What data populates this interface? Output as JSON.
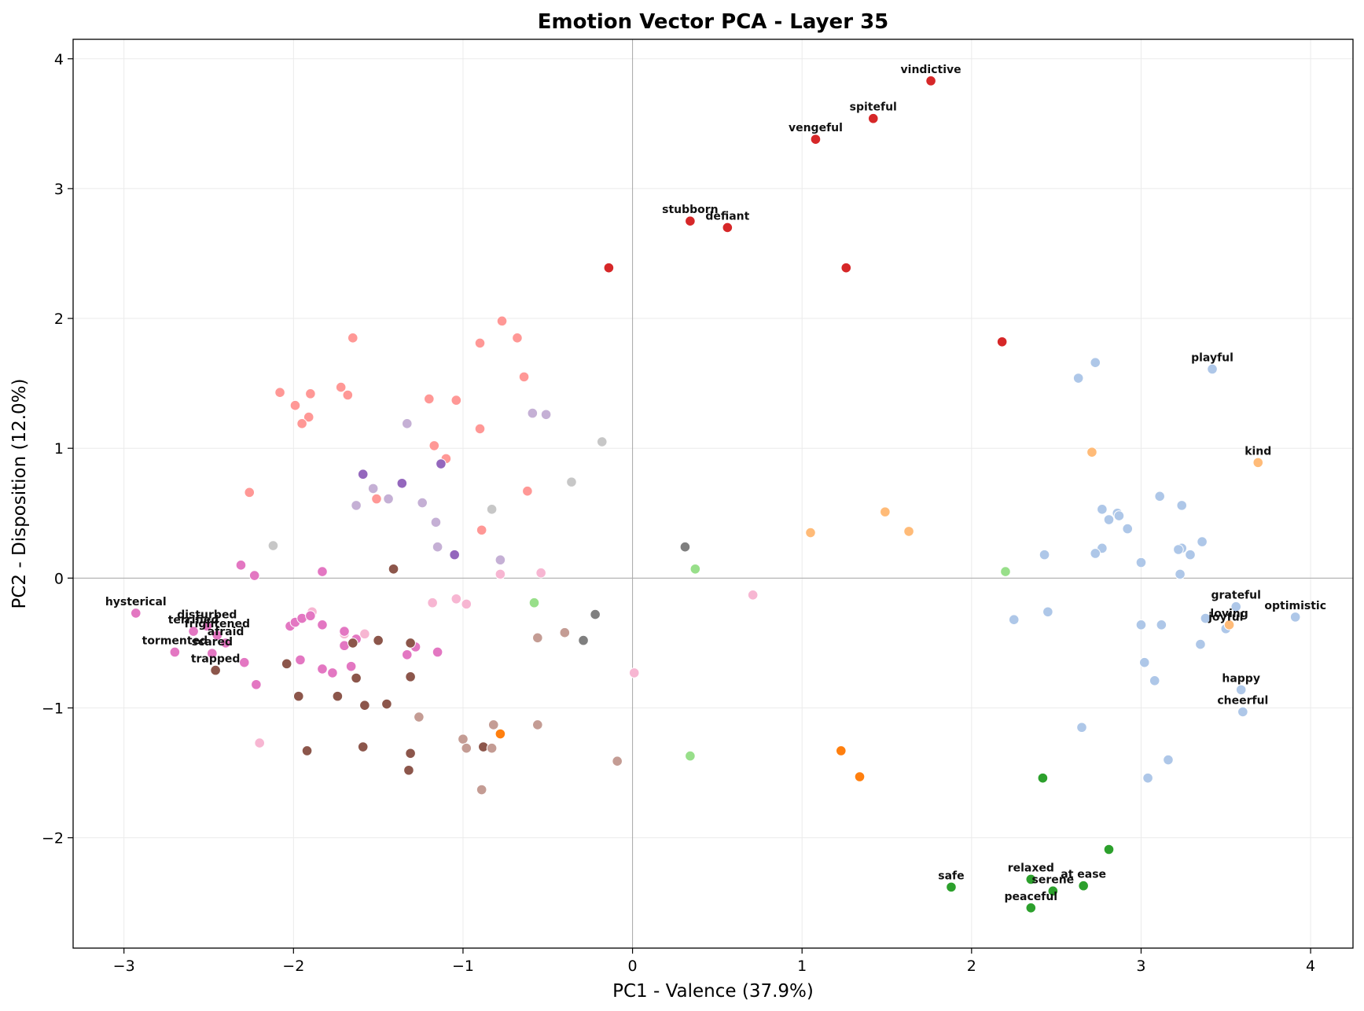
{
  "chart_data": {
    "type": "scatter",
    "title": "Emotion Vector PCA - Layer 35",
    "xlabel": "PC1 - Valence (37.9%)",
    "ylabel": "PC2 - Disposition (12.0%)",
    "xlim": [
      -3.3,
      4.25
    ],
    "ylim": [
      -2.85,
      4.15
    ],
    "xticks": [
      -3,
      -2,
      -1,
      0,
      1,
      2,
      3,
      4
    ],
    "yticks": [
      -2,
      -1,
      0,
      1,
      2,
      3,
      4
    ],
    "xtick_labels": [
      "−3",
      "−2",
      "−1",
      "0",
      "1",
      "2",
      "3",
      "4"
    ],
    "ytick_labels": [
      "−2",
      "−1",
      "0",
      "1",
      "2",
      "3",
      "4"
    ],
    "grid": true,
    "zero_lines": true,
    "legend": "none",
    "series": [
      {
        "color": "#d62728",
        "points": [
          [
            1.76,
            3.83
          ],
          [
            1.42,
            3.54
          ],
          [
            1.08,
            3.38
          ],
          [
            0.34,
            2.75
          ],
          [
            0.56,
            2.7
          ],
          [
            -0.14,
            2.39
          ],
          [
            1.26,
            2.39
          ],
          [
            2.18,
            1.82
          ]
        ]
      },
      {
        "color": "#ff9896",
        "points": [
          [
            -0.77,
            1.98
          ],
          [
            -0.68,
            1.85
          ],
          [
            -1.65,
            1.85
          ],
          [
            -0.9,
            1.81
          ],
          [
            -0.64,
            1.55
          ],
          [
            -2.08,
            1.43
          ],
          [
            -1.72,
            1.47
          ],
          [
            -1.9,
            1.42
          ],
          [
            -1.68,
            1.41
          ],
          [
            -1.2,
            1.38
          ],
          [
            -1.04,
            1.37
          ],
          [
            -1.99,
            1.33
          ],
          [
            -1.91,
            1.24
          ],
          [
            -1.95,
            1.19
          ],
          [
            -0.9,
            1.15
          ],
          [
            -1.17,
            1.02
          ],
          [
            -1.1,
            0.92
          ],
          [
            -2.26,
            0.66
          ],
          [
            -0.62,
            0.67
          ],
          [
            -1.51,
            0.61
          ],
          [
            -0.89,
            0.37
          ]
        ]
      },
      {
        "color": "#aec7e8",
        "points": [
          [
            3.42,
            1.61
          ],
          [
            2.73,
            1.66
          ],
          [
            2.63,
            1.54
          ],
          [
            3.11,
            0.63
          ],
          [
            3.24,
            0.56
          ],
          [
            2.77,
            0.53
          ],
          [
            2.86,
            0.5
          ],
          [
            2.87,
            0.48
          ],
          [
            2.81,
            0.45
          ],
          [
            2.92,
            0.38
          ],
          [
            3.36,
            0.28
          ],
          [
            2.77,
            0.23
          ],
          [
            3.24,
            0.23
          ],
          [
            3.22,
            0.22
          ],
          [
            3.29,
            0.18
          ],
          [
            2.73,
            0.19
          ],
          [
            2.43,
            0.18
          ],
          [
            3.0,
            0.12
          ],
          [
            3.23,
            0.03
          ],
          [
            3.56,
            -0.22
          ],
          [
            3.91,
            -0.3
          ],
          [
            3.38,
            -0.31
          ],
          [
            2.25,
            -0.32
          ],
          [
            2.45,
            -0.26
          ],
          [
            3.0,
            -0.36
          ],
          [
            3.12,
            -0.36
          ],
          [
            3.5,
            -0.39
          ],
          [
            3.35,
            -0.51
          ],
          [
            3.02,
            -0.65
          ],
          [
            3.08,
            -0.79
          ],
          [
            3.59,
            -0.86
          ],
          [
            3.6,
            -1.03
          ],
          [
            2.65,
            -1.15
          ],
          [
            3.16,
            -1.4
          ],
          [
            3.04,
            -1.54
          ]
        ]
      },
      {
        "color": "#ffbb78",
        "points": [
          [
            3.69,
            0.89
          ],
          [
            2.71,
            0.97
          ],
          [
            1.49,
            0.51
          ],
          [
            1.63,
            0.36
          ],
          [
            1.05,
            0.35
          ],
          [
            3.52,
            -0.36
          ]
        ]
      },
      {
        "color": "#c5b0d5",
        "points": [
          [
            -1.33,
            1.19
          ],
          [
            -0.59,
            1.27
          ],
          [
            -0.51,
            1.26
          ],
          [
            -1.53,
            0.69
          ],
          [
            -1.44,
            0.61
          ],
          [
            -1.63,
            0.56
          ],
          [
            -1.24,
            0.58
          ],
          [
            -1.16,
            0.43
          ],
          [
            -1.15,
            0.24
          ],
          [
            -0.78,
            0.14
          ]
        ]
      },
      {
        "color": "#9467bd",
        "points": [
          [
            -1.59,
            0.8
          ],
          [
            -1.36,
            0.73
          ],
          [
            -1.13,
            0.88
          ],
          [
            -1.05,
            0.18
          ]
        ]
      },
      {
        "color": "#c7c7c7",
        "points": [
          [
            -0.18,
            1.05
          ],
          [
            -0.36,
            0.74
          ],
          [
            -0.83,
            0.53
          ],
          [
            -2.12,
            0.25
          ]
        ]
      },
      {
        "color": "#7f7f7f",
        "points": [
          [
            0.31,
            0.24
          ],
          [
            -0.22,
            -0.28
          ],
          [
            -0.29,
            -0.48
          ]
        ]
      },
      {
        "color": "#98df8a",
        "points": [
          [
            0.37,
            0.07
          ],
          [
            2.2,
            0.05
          ],
          [
            -0.58,
            -0.19
          ],
          [
            0.34,
            -1.37
          ]
        ]
      },
      {
        "color": "#f7b6d2",
        "points": [
          [
            -0.78,
            0.03
          ],
          [
            -0.54,
            0.04
          ],
          [
            -1.89,
            -0.26
          ],
          [
            -1.18,
            -0.19
          ],
          [
            -1.04,
            -0.16
          ],
          [
            -0.98,
            -0.2
          ],
          [
            0.71,
            -0.13
          ],
          [
            -1.7,
            -0.43
          ],
          [
            -1.58,
            -0.43
          ],
          [
            0.01,
            -0.73
          ],
          [
            -2.2,
            -1.27
          ]
        ]
      },
      {
        "color": "#e377c2",
        "points": [
          [
            -2.31,
            0.1
          ],
          [
            -2.23,
            0.02
          ],
          [
            -1.83,
            0.05
          ],
          [
            -2.93,
            -0.27
          ],
          [
            -2.59,
            -0.41
          ],
          [
            -2.51,
            -0.37
          ],
          [
            -2.45,
            -0.44
          ],
          [
            -2.4,
            -0.5
          ],
          [
            -2.02,
            -0.37
          ],
          [
            -1.99,
            -0.34
          ],
          [
            -1.95,
            -0.31
          ],
          [
            -1.9,
            -0.29
          ],
          [
            -1.83,
            -0.36
          ],
          [
            -1.7,
            -0.41
          ],
          [
            -1.63,
            -0.47
          ],
          [
            -1.7,
            -0.52
          ],
          [
            -2.7,
            -0.57
          ],
          [
            -2.48,
            -0.58
          ],
          [
            -2.29,
            -0.65
          ],
          [
            -1.96,
            -0.63
          ],
          [
            -1.83,
            -0.7
          ],
          [
            -1.77,
            -0.73
          ],
          [
            -1.66,
            -0.68
          ],
          [
            -1.28,
            -0.53
          ],
          [
            -1.33,
            -0.59
          ],
          [
            -1.15,
            -0.57
          ],
          [
            -2.22,
            -0.82
          ]
        ]
      },
      {
        "color": "#8c564b",
        "points": [
          [
            -1.41,
            0.07
          ],
          [
            -1.65,
            -0.5
          ],
          [
            -1.5,
            -0.48
          ],
          [
            -1.31,
            -0.5
          ],
          [
            -2.46,
            -0.71
          ],
          [
            -2.04,
            -0.66
          ],
          [
            -1.63,
            -0.77
          ],
          [
            -1.31,
            -0.76
          ],
          [
            -1.97,
            -0.91
          ],
          [
            -1.74,
            -0.91
          ],
          [
            -1.58,
            -0.98
          ],
          [
            -1.45,
            -0.97
          ],
          [
            -1.92,
            -1.33
          ],
          [
            -1.59,
            -1.3
          ],
          [
            -1.31,
            -1.35
          ],
          [
            -1.32,
            -1.48
          ],
          [
            -0.88,
            -1.3
          ]
        ]
      },
      {
        "color": "#c49c94",
        "points": [
          [
            -0.4,
            -0.42
          ],
          [
            -0.56,
            -0.46
          ],
          [
            -1.26,
            -1.07
          ],
          [
            -0.82,
            -1.13
          ],
          [
            -0.56,
            -1.13
          ],
          [
            -1.0,
            -1.24
          ],
          [
            -0.98,
            -1.31
          ],
          [
            -0.83,
            -1.31
          ],
          [
            -0.09,
            -1.41
          ],
          [
            -0.89,
            -1.63
          ]
        ]
      },
      {
        "color": "#ff7f0e",
        "points": [
          [
            -0.78,
            -1.2
          ],
          [
            1.23,
            -1.33
          ],
          [
            1.34,
            -1.53
          ]
        ]
      },
      {
        "color": "#2ca02c",
        "points": [
          [
            2.42,
            -1.54
          ],
          [
            2.81,
            -2.09
          ],
          [
            1.88,
            -2.38
          ],
          [
            2.35,
            -2.32
          ],
          [
            2.48,
            -2.41
          ],
          [
            2.66,
            -2.37
          ],
          [
            2.35,
            -2.54
          ]
        ]
      }
    ],
    "annotations": [
      {
        "text": "vindictive",
        "x": 1.76,
        "y": 3.83
      },
      {
        "text": "spiteful",
        "x": 1.42,
        "y": 3.54
      },
      {
        "text": "vengeful",
        "x": 1.08,
        "y": 3.38
      },
      {
        "text": "stubborn",
        "x": 0.34,
        "y": 2.75
      },
      {
        "text": "defiant",
        "x": 0.56,
        "y": 2.7
      },
      {
        "text": "playful",
        "x": 3.42,
        "y": 1.61
      },
      {
        "text": "kind",
        "x": 3.69,
        "y": 0.89
      },
      {
        "text": "grateful",
        "x": 3.56,
        "y": -0.22
      },
      {
        "text": "optimistic",
        "x": 3.91,
        "y": -0.3
      },
      {
        "text": "loving",
        "x": 3.52,
        "y": -0.36
      },
      {
        "text": "joyful",
        "x": 3.5,
        "y": -0.39
      },
      {
        "text": "happy",
        "x": 3.59,
        "y": -0.86
      },
      {
        "text": "cheerful",
        "x": 3.6,
        "y": -1.03
      },
      {
        "text": "hysterical",
        "x": -2.93,
        "y": -0.27
      },
      {
        "text": "disturbed",
        "x": -2.51,
        "y": -0.37
      },
      {
        "text": "terrified",
        "x": -2.59,
        "y": -0.41
      },
      {
        "text": "frightened",
        "x": -2.45,
        "y": -0.44
      },
      {
        "text": "afraid",
        "x": -2.4,
        "y": -0.5
      },
      {
        "text": "tormented",
        "x": -2.7,
        "y": -0.57
      },
      {
        "text": "scared",
        "x": -2.48,
        "y": -0.58
      },
      {
        "text": "trapped",
        "x": -2.46,
        "y": -0.71
      },
      {
        "text": "safe",
        "x": 1.88,
        "y": -2.38
      },
      {
        "text": "relaxed",
        "x": 2.35,
        "y": -2.32
      },
      {
        "text": "serene",
        "x": 2.48,
        "y": -2.41
      },
      {
        "text": "at ease",
        "x": 2.66,
        "y": -2.37
      },
      {
        "text": "peaceful",
        "x": 2.35,
        "y": -2.54
      }
    ]
  }
}
